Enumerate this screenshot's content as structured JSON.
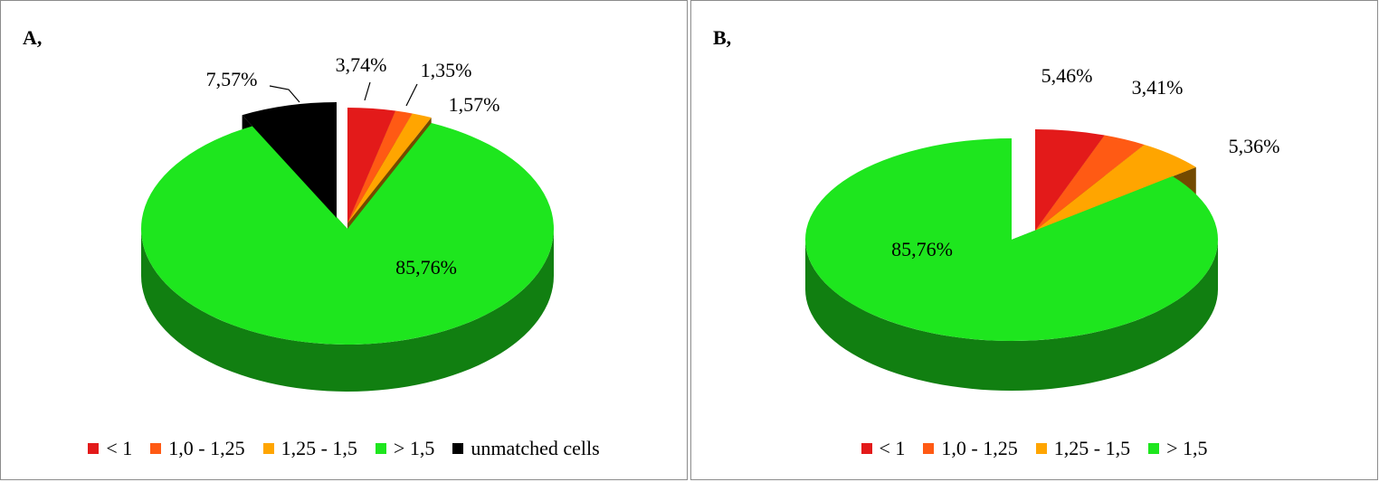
{
  "colors": {
    "lt1": "#e31a1a",
    "r1_125": "#ff5a14",
    "r125_15": "#ffa500",
    "gt15": "#1ee61e",
    "unmatched": "#000000"
  },
  "chart_data": [
    {
      "type": "pie",
      "panel_label": "A,",
      "slices": [
        {
          "name": "< 1",
          "value": 3.74,
          "label": "3,74%",
          "colorKey": "lt1"
        },
        {
          "name": "1,0 - 1,25",
          "value": 1.35,
          "label": "1,35%",
          "colorKey": "r1_125"
        },
        {
          "name": "1,25 - 1,5",
          "value": 1.57,
          "label": "1,57%",
          "colorKey": "r125_15"
        },
        {
          "name": "> 1,5",
          "value": 85.76,
          "label": "85,76%",
          "colorKey": "gt15"
        },
        {
          "name": "unmatched cells",
          "value": 7.57,
          "label": "7,57%",
          "colorKey": "unmatched"
        }
      ],
      "legend_position": "bottom"
    },
    {
      "type": "pie",
      "panel_label": "B,",
      "slices": [
        {
          "name": "< 1",
          "value": 5.46,
          "label": "5,46%",
          "colorKey": "lt1"
        },
        {
          "name": "1,0 - 1,25",
          "value": 3.41,
          "label": "3,41%",
          "colorKey": "r1_125"
        },
        {
          "name": "1,25 - 1,5",
          "value": 5.36,
          "label": "5,36%",
          "colorKey": "r125_15"
        },
        {
          "name": "> 1,5",
          "value": 85.76,
          "label": "85,76%",
          "colorKey": "gt15"
        }
      ],
      "legend_position": "bottom"
    }
  ]
}
